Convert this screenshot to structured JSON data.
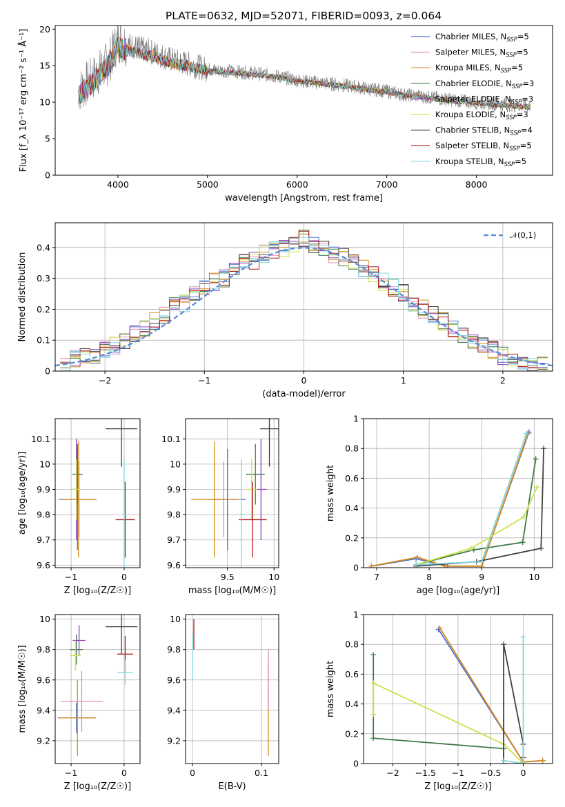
{
  "figure_title": "PLATE=0632, MJD=52071, FIBERID=0093, z=0.064",
  "models": [
    {
      "name": "Chabrier MILES",
      "nssp": "5",
      "color": "#4a6fd4"
    },
    {
      "name": "Salpeter MILES",
      "nssp": "5",
      "color": "#e88ab0"
    },
    {
      "name": "Kroupa MILES",
      "nssp": "5",
      "color": "#d98a1a"
    },
    {
      "name": "Chabrier ELODIE",
      "nssp": "3",
      "color": "#3f7a45"
    },
    {
      "name": "Salpeter ELODIE",
      "nssp": "3",
      "color": "#8a3fbf"
    },
    {
      "name": "Kroupa ELODIE",
      "nssp": "3",
      "color": "#cde04a"
    },
    {
      "name": "Chabrier STELIB",
      "nssp": "4",
      "color": "#404040"
    },
    {
      "name": "Salpeter STELIB",
      "nssp": "5",
      "color": "#b01818"
    },
    {
      "name": "Kroupa STELIB",
      "nssp": "5",
      "color": "#7fd6dc"
    }
  ],
  "chart_data": [
    {
      "id": "spectrum",
      "type": "line",
      "xlabel": "wavelength [Angstrom, rest frame]",
      "ylabel": "Flux [f_λ 10⁻¹⁷ erg cm⁻² s⁻¹ Å⁻¹]",
      "xlim": [
        3300,
        8850
      ],
      "ylim": [
        0,
        20.5
      ],
      "xticks": [
        4000,
        5000,
        6000,
        7000,
        8000
      ],
      "yticks": [
        0,
        5,
        10,
        15,
        20
      ],
      "legend_position": "upper-right",
      "data_curve": {
        "x": [
          3560,
          3700,
          3900,
          4000,
          4200,
          4400,
          4600,
          4800,
          5000,
          5200,
          5500,
          5800,
          6000,
          6300,
          6600,
          6800,
          7000,
          7200,
          7400,
          7600,
          7800,
          8000,
          8200,
          8400,
          8600
        ],
        "y": [
          11.5,
          13.0,
          15.5,
          18.5,
          17.5,
          16.8,
          15.8,
          15.2,
          14.5,
          14.3,
          14.0,
          13.5,
          13.0,
          12.6,
          12.2,
          11.8,
          11.5,
          11.0,
          10.8,
          10.5,
          10.2,
          10.0,
          9.8,
          9.6,
          9.5
        ]
      },
      "model_curve": {
        "x": [
          3560,
          3700,
          3900,
          4000,
          4200,
          4400,
          4600,
          4800,
          5000,
          5200,
          5500,
          5800,
          6000,
          6300,
          6600,
          6800,
          7000,
          7200,
          7400,
          7600,
          7800,
          8000,
          8200,
          8400,
          8600
        ],
        "y": [
          11.0,
          12.5,
          15.0,
          17.5,
          16.8,
          16.2,
          15.4,
          14.9,
          14.3,
          14.1,
          13.8,
          13.4,
          12.9,
          12.5,
          12.1,
          11.7,
          11.4,
          11.0,
          10.7,
          10.4,
          10.1,
          9.9,
          9.7,
          9.5,
          9.3
        ]
      }
    },
    {
      "id": "residuals",
      "type": "line",
      "xlabel": "(data-model)/error",
      "ylabel": "Normed distribution",
      "xlim": [
        -2.5,
        2.5
      ],
      "ylim": [
        0,
        0.48
      ],
      "xticks": [
        -2,
        -1,
        0,
        1,
        2
      ],
      "yticks": [
        0.0,
        0.1,
        0.2,
        0.3,
        0.4
      ],
      "grid": true,
      "legend_position": "upper-right",
      "gaussian_label": "𝒩(0,1)",
      "bin_centers": [
        -2.4,
        -2.3,
        -2.2,
        -2.1,
        -2.0,
        -1.9,
        -1.8,
        -1.7,
        -1.6,
        -1.5,
        -1.4,
        -1.3,
        -1.2,
        -1.1,
        -1.0,
        -0.9,
        -0.8,
        -0.7,
        -0.6,
        -0.5,
        -0.4,
        -0.3,
        -0.2,
        -0.1,
        0.0,
        0.1,
        0.2,
        0.3,
        0.4,
        0.5,
        0.6,
        0.7,
        0.8,
        0.9,
        1.0,
        1.1,
        1.2,
        1.3,
        1.4,
        1.5,
        1.6,
        1.7,
        1.8,
        1.9,
        2.0,
        2.1,
        2.2,
        2.3,
        2.4
      ],
      "hist_values": [
        0.02,
        0.04,
        0.05,
        0.05,
        0.07,
        0.08,
        0.1,
        0.12,
        0.14,
        0.16,
        0.18,
        0.21,
        0.22,
        0.25,
        0.27,
        0.29,
        0.3,
        0.33,
        0.35,
        0.36,
        0.38,
        0.39,
        0.4,
        0.41,
        0.43,
        0.41,
        0.4,
        0.38,
        0.37,
        0.35,
        0.33,
        0.31,
        0.29,
        0.27,
        0.25,
        0.22,
        0.2,
        0.18,
        0.16,
        0.14,
        0.12,
        0.1,
        0.08,
        0.07,
        0.05,
        0.04,
        0.03,
        0.03,
        0.02
      ]
    },
    {
      "id": "age-vs-z",
      "type": "scatter",
      "xlabel": "Z [log₁₀(Z/Z☉)]",
      "ylabel": "age  [log₁₀(age/yr)]",
      "xlim": [
        -1.3,
        0.3
      ],
      "ylim": [
        9.59,
        10.18
      ],
      "xticks": [
        -1,
        0
      ],
      "yticks": [
        9.6,
        9.7,
        9.8,
        9.9,
        10.0,
        10.1
      ],
      "grid": true,
      "points": [
        {
          "x": -0.88,
          "y": 9.86,
          "xerr": 0.35,
          "yerr": 0.2,
          "model": 0
        },
        {
          "x": -0.85,
          "y": 9.86,
          "xerr": 0.33,
          "yerr": 0.15,
          "model": 1
        },
        {
          "x": -0.86,
          "y": 9.86,
          "xerr": 0.34,
          "yerr": 0.23,
          "model": 2
        },
        {
          "x": -0.88,
          "y": 9.96,
          "xerr": 0.1,
          "yerr": 0.12,
          "model": 3
        },
        {
          "x": -0.9,
          "y": 9.9,
          "xerr": 0.08,
          "yerr": 0.2,
          "model": 4
        },
        {
          "x": -0.9,
          "y": 9.9,
          "xerr": 0.08,
          "yerr": 0.12,
          "model": 5
        },
        {
          "x": -0.05,
          "y": 10.14,
          "xerr": 0.3,
          "yerr": 0.15,
          "model": 6
        },
        {
          "x": 0.02,
          "y": 9.78,
          "xerr": 0.18,
          "yerr": 0.15,
          "model": 7
        },
        {
          "x": 0.0,
          "y": 9.8,
          "xerr": 0.05,
          "yerr": 0.22,
          "model": 8
        }
      ]
    },
    {
      "id": "age-vs-mass",
      "type": "scatter",
      "xlabel": "mass [log₁₀(M/M☉)]",
      "ylabel": "",
      "xlim": [
        9.05,
        10.05
      ],
      "ylim": [
        9.59,
        10.18
      ],
      "xticks": [
        9.5,
        10.0
      ],
      "yticks": [
        9.6,
        9.7,
        9.8,
        9.9,
        10.0,
        10.1
      ],
      "grid": true,
      "points": [
        {
          "x": 9.5,
          "y": 9.86,
          "xerr": 0.2,
          "yerr": 0.2,
          "model": 0
        },
        {
          "x": 9.46,
          "y": 9.86,
          "xerr": 0.18,
          "yerr": 0.15,
          "model": 1
        },
        {
          "x": 9.36,
          "y": 9.86,
          "xerr": 0.25,
          "yerr": 0.23,
          "model": 2
        },
        {
          "x": 9.8,
          "y": 9.96,
          "xerr": 0.1,
          "yerr": 0.12,
          "model": 3
        },
        {
          "x": 9.86,
          "y": 9.9,
          "xerr": 0.06,
          "yerr": 0.2,
          "model": 4
        },
        {
          "x": 9.76,
          "y": 9.9,
          "xerr": 0.06,
          "yerr": 0.12,
          "model": 5
        },
        {
          "x": 9.95,
          "y": 10.14,
          "xerr": 0.1,
          "yerr": 0.15,
          "model": 6
        },
        {
          "x": 9.77,
          "y": 9.78,
          "xerr": 0.15,
          "yerr": 0.15,
          "model": 7
        },
        {
          "x": 9.65,
          "y": 9.8,
          "xerr": 0.05,
          "yerr": 0.22,
          "model": 8
        }
      ]
    },
    {
      "id": "weight-vs-age",
      "type": "line",
      "xlabel": "age  [log₁₀(age/yr)]",
      "ylabel": "mass weight",
      "xlim": [
        6.75,
        10.35
      ],
      "ylim": [
        0,
        1.0
      ],
      "xticks": [
        7,
        8,
        9,
        10
      ],
      "yticks": [
        0.0,
        0.2,
        0.4,
        0.6,
        0.8,
        1.0
      ],
      "grid": true,
      "series": [
        {
          "model": 0,
          "x": [
            6.9,
            7.75,
            8.35,
            9.0,
            9.9
          ],
          "y": [
            0.01,
            0.06,
            0.01,
            0.01,
            0.91
          ]
        },
        {
          "model": 2,
          "x": [
            6.9,
            7.78,
            8.3,
            9.0,
            9.88
          ],
          "y": [
            0.01,
            0.07,
            0.01,
            0.01,
            0.9
          ]
        },
        {
          "model": 3,
          "x": [
            7.75,
            8.85,
            9.78,
            10.03
          ],
          "y": [
            0.02,
            0.12,
            0.17,
            0.73
          ]
        },
        {
          "model": 5,
          "x": [
            7.75,
            8.8,
            9.8,
            10.05
          ],
          "y": [
            0.02,
            0.13,
            0.34,
            0.54
          ]
        },
        {
          "model": 6,
          "x": [
            7.75,
            8.9,
            10.13,
            10.18
          ],
          "y": [
            0.01,
            0.04,
            0.13,
            0.8
          ]
        },
        {
          "model": 8,
          "x": [
            7.75,
            9.0,
            9.85
          ],
          "y": [
            0.02,
            0.04,
            0.9
          ]
        }
      ]
    },
    {
      "id": "mass-vs-z",
      "type": "scatter",
      "xlabel": "Z [log₁₀(Z/Z☉)]",
      "ylabel": "mass [log₁₀(M/M☉)]",
      "xlim": [
        -1.3,
        0.3
      ],
      "ylim": [
        9.05,
        10.03
      ],
      "xticks": [
        -1,
        0
      ],
      "yticks": [
        9.2,
        9.4,
        9.6,
        9.8,
        10.0
      ],
      "grid": true,
      "points": [
        {
          "x": -0.9,
          "y": 9.35,
          "xerr": 0.35,
          "yerr": 0.1,
          "model": 0
        },
        {
          "x": -0.8,
          "y": 9.46,
          "xerr": 0.4,
          "yerr": 0.2,
          "model": 1
        },
        {
          "x": -0.88,
          "y": 9.35,
          "xerr": 0.35,
          "yerr": 0.25,
          "model": 2
        },
        {
          "x": -0.9,
          "y": 9.8,
          "xerr": 0.12,
          "yerr": 0.1,
          "model": 3
        },
        {
          "x": -0.85,
          "y": 9.86,
          "xerr": 0.12,
          "yerr": 0.1,
          "model": 4
        },
        {
          "x": -0.92,
          "y": 9.76,
          "xerr": 0.1,
          "yerr": 0.1,
          "model": 5
        },
        {
          "x": -0.05,
          "y": 9.95,
          "xerr": 0.3,
          "yerr": 0.18,
          "model": 6
        },
        {
          "x": 0.02,
          "y": 9.77,
          "xerr": 0.15,
          "yerr": 0.12,
          "model": 7
        },
        {
          "x": 0.02,
          "y": 9.65,
          "xerr": 0.15,
          "yerr": 0.08,
          "model": 8
        }
      ]
    },
    {
      "id": "mass-vs-ebv",
      "type": "scatter",
      "xlabel": "E(B-V)",
      "ylabel": "",
      "xlim": [
        -0.01,
        0.125
      ],
      "ylim": [
        9.05,
        10.03
      ],
      "xticks": [
        0.0,
        0.1
      ],
      "yticks": [
        9.2,
        9.4,
        9.6,
        9.8,
        10.0
      ],
      "grid": true,
      "points": [
        {
          "x": 0.002,
          "y": 9.9,
          "xerr": 0,
          "yerr": 0.1,
          "model": 7
        },
        {
          "x": 0.0,
          "y": 9.75,
          "xerr": 0,
          "yerr": 0.15,
          "model": 8
        },
        {
          "x": 0.11,
          "y": 9.4,
          "xerr": 0,
          "yerr": 0.3,
          "model": 2
        },
        {
          "x": 0.11,
          "y": 9.6,
          "xerr": 0,
          "yerr": 0.2,
          "model": 1
        }
      ]
    },
    {
      "id": "weight-vs-z",
      "type": "line",
      "xlabel": "Z [log₁₀(Z/Z☉)]",
      "ylabel": "mass weight",
      "xlim": [
        -2.45,
        0.45
      ],
      "ylim": [
        0,
        1.0
      ],
      "xticks": [
        -2.0,
        -1.5,
        -1.0,
        -0.5,
        0.0
      ],
      "yticks": [
        0.0,
        0.2,
        0.4,
        0.6,
        0.8,
        1.0
      ],
      "grid": true,
      "series": [
        {
          "model": 0,
          "x": [
            -1.3,
            0.0,
            0.3
          ],
          "y": [
            0.9,
            0.01,
            0.02
          ]
        },
        {
          "model": 2,
          "x": [
            -1.28,
            0.0,
            0.3
          ],
          "y": [
            0.91,
            0.01,
            0.02
          ]
        },
        {
          "model": 3,
          "x": [
            -2.3,
            -2.3,
            -0.3,
            -0.3
          ],
          "y": [
            0.73,
            0.17,
            0.1,
            0.0
          ]
        },
        {
          "model": 5,
          "x": [
            -2.3,
            -2.3,
            -0.3,
            0.0
          ],
          "y": [
            0.33,
            0.54,
            0.13,
            0.0
          ]
        },
        {
          "model": 6,
          "x": [
            -0.3,
            -0.3,
            0.0,
            0.0
          ],
          "y": [
            0.0,
            0.8,
            0.13,
            0.04
          ]
        },
        {
          "model": 8,
          "x": [
            -0.3,
            0.0,
            0.0
          ],
          "y": [
            0.02,
            0.0,
            0.85
          ]
        }
      ]
    }
  ]
}
